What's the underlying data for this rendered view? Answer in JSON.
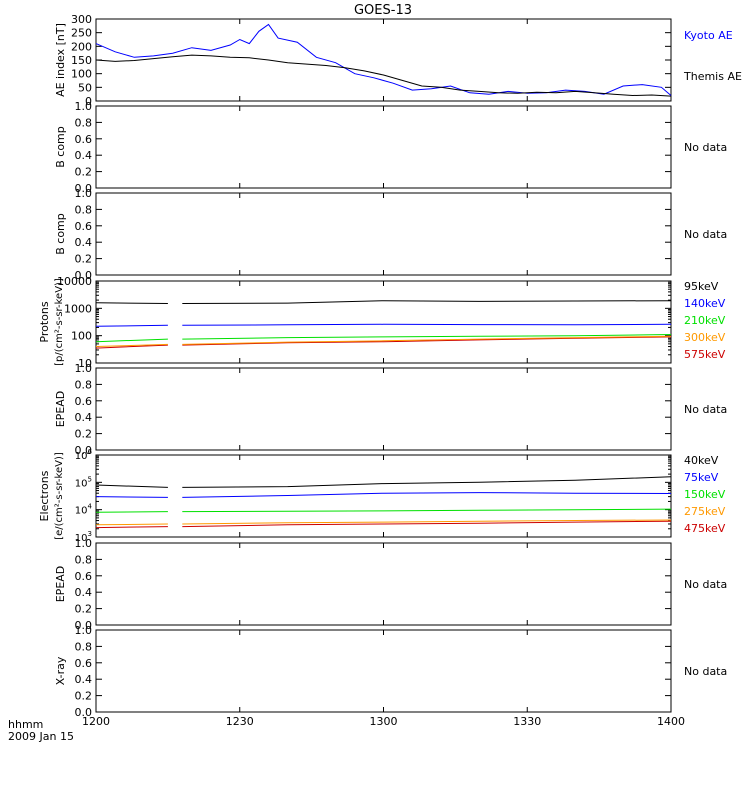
{
  "title": "GOES-13",
  "footer": {
    "unit_label": "hhmm",
    "date_label": "2009 Jan 15"
  },
  "x_axis": {
    "range": [
      720,
      840
    ],
    "ticks": [
      {
        "value": 720,
        "label": "1200"
      },
      {
        "value": 750,
        "label": "1230"
      },
      {
        "value": 780,
        "label": "1300"
      },
      {
        "value": 810,
        "label": "1330"
      },
      {
        "value": 840,
        "label": "1400"
      }
    ]
  },
  "colors": {
    "axis": "#000000",
    "black": "#000000",
    "blue": "#0000ff",
    "green": "#00e000",
    "orange": "#ff9900",
    "red": "#cc0000"
  },
  "chart_data": [
    {
      "type": "line",
      "ylabel": "AE index [nT]",
      "ylim": [
        0,
        300
      ],
      "y_ticks": [
        {
          "value": 0,
          "label": "0"
        },
        {
          "value": 50,
          "label": "50"
        },
        {
          "value": 100,
          "label": "100"
        },
        {
          "value": 150,
          "label": "150"
        },
        {
          "value": 200,
          "label": "200"
        },
        {
          "value": 250,
          "label": "250"
        },
        {
          "value": 300,
          "label": "300"
        }
      ],
      "series": [
        {
          "name": "Kyoto AE",
          "color": "#0000ff",
          "x": [
            720,
            724,
            728,
            732,
            736,
            740,
            744,
            748,
            750,
            752,
            754,
            756,
            758,
            762,
            766,
            770,
            774,
            778,
            782,
            786,
            790,
            794,
            798,
            802,
            806,
            810,
            814,
            818,
            822,
            826,
            830,
            834,
            838,
            840
          ],
          "y": [
            210,
            180,
            160,
            165,
            175,
            195,
            185,
            205,
            225,
            210,
            255,
            280,
            230,
            215,
            160,
            140,
            100,
            85,
            65,
            40,
            45,
            55,
            30,
            25,
            35,
            28,
            30,
            40,
            35,
            25,
            55,
            60,
            50,
            20
          ]
        },
        {
          "name": "Themis AE",
          "color": "#000000",
          "x": [
            720,
            724,
            728,
            732,
            736,
            740,
            744,
            748,
            752,
            756,
            760,
            764,
            768,
            772,
            776,
            780,
            784,
            788,
            792,
            796,
            800,
            804,
            808,
            812,
            816,
            820,
            824,
            828,
            832,
            836,
            840
          ],
          "y": [
            150,
            145,
            148,
            155,
            162,
            168,
            165,
            160,
            158,
            150,
            140,
            135,
            130,
            122,
            110,
            95,
            75,
            55,
            50,
            40,
            35,
            30,
            28,
            32,
            30,
            35,
            30,
            25,
            20,
            22,
            18
          ]
        }
      ]
    },
    {
      "type": "line",
      "ylabel": "B comp",
      "ylim": [
        0,
        1
      ],
      "series": [],
      "note": "No data",
      "y_ticks": [
        {
          "value": 0,
          "label": "0.0"
        },
        {
          "value": 0.2,
          "label": "0.2"
        },
        {
          "value": 0.4,
          "label": "0.4"
        },
        {
          "value": 0.6,
          "label": "0.6"
        },
        {
          "value": 0.8,
          "label": "0.8"
        },
        {
          "value": 1,
          "label": "1.0"
        }
      ]
    },
    {
      "type": "line",
      "ylabel": "B comp",
      "ylim": [
        0,
        1
      ],
      "series": [],
      "note": "No data",
      "y_ticks": [
        {
          "value": 0,
          "label": "0.0"
        },
        {
          "value": 0.2,
          "label": "0.2"
        },
        {
          "value": 0.4,
          "label": "0.4"
        },
        {
          "value": 0.6,
          "label": "0.6"
        },
        {
          "value": 0.8,
          "label": "0.8"
        },
        {
          "value": 1,
          "label": "1.0"
        }
      ]
    },
    {
      "type": "line",
      "ylabel": "Protons",
      "ylabel2": "[p/(cm²-s-sr-keV)]",
      "yscale": "log",
      "ylim": [
        10,
        10000
      ],
      "data_gap": [
        735,
        738
      ],
      "y_ticks": [
        {
          "value": 10,
          "label": "10"
        },
        {
          "value": 100,
          "label": "100"
        },
        {
          "value": 1000,
          "label": "1000"
        },
        {
          "value": 10000,
          "label": "10000"
        }
      ],
      "series": [
        {
          "name": "575keV",
          "color": "#cc0000",
          "x": [
            720,
            735,
            738,
            760,
            780,
            800,
            820,
            840
          ],
          "y": [
            35,
            45,
            45,
            55,
            60,
            70,
            80,
            90
          ]
        },
        {
          "name": "300keV",
          "color": "#ff9900",
          "x": [
            720,
            735,
            738,
            760,
            780,
            800,
            820,
            840
          ],
          "y": [
            40,
            48,
            48,
            58,
            65,
            75,
            85,
            95
          ]
        },
        {
          "name": "210keV",
          "color": "#00e000",
          "x": [
            720,
            735,
            738,
            760,
            780,
            800,
            820,
            840
          ],
          "y": [
            60,
            75,
            75,
            85,
            90,
            95,
            100,
            110
          ]
        },
        {
          "name": "140keV",
          "color": "#0000ff",
          "x": [
            720,
            735,
            738,
            760,
            780,
            800,
            820,
            840
          ],
          "y": [
            220,
            240,
            240,
            250,
            260,
            255,
            250,
            260
          ]
        },
        {
          "name": "95keV",
          "color": "#000000",
          "x": [
            720,
            735,
            738,
            760,
            780,
            800,
            820,
            840
          ],
          "y": [
            1600,
            1500,
            1500,
            1550,
            1900,
            1800,
            1850,
            1900
          ]
        }
      ]
    },
    {
      "type": "line",
      "ylabel": "EPEAD",
      "ylim": [
        0,
        1
      ],
      "series": [],
      "note": "No data",
      "y_ticks": [
        {
          "value": 0,
          "label": "0.0"
        },
        {
          "value": 0.2,
          "label": "0.2"
        },
        {
          "value": 0.4,
          "label": "0.4"
        },
        {
          "value": 0.6,
          "label": "0.6"
        },
        {
          "value": 0.8,
          "label": "0.8"
        },
        {
          "value": 1,
          "label": "1.0"
        }
      ]
    },
    {
      "type": "line",
      "ylabel": "Electrons",
      "ylabel2": "[e/(cm²-s-sr-keV)]",
      "yscale": "log",
      "ylim": [
        1000,
        1000000
      ],
      "data_gap": [
        735,
        738
      ],
      "y_ticks": [
        {
          "value": 1000,
          "label": "10",
          "exp": "3"
        },
        {
          "value": 10000,
          "label": "10",
          "exp": "4"
        },
        {
          "value": 100000,
          "label": "10",
          "exp": "5"
        },
        {
          "value": 1000000,
          "label": "10",
          "exp": "6"
        }
      ],
      "series": [
        {
          "name": "475keV",
          "color": "#cc0000",
          "x": [
            720,
            735,
            738,
            760,
            780,
            800,
            820,
            840
          ],
          "y": [
            2200,
            2400,
            2400,
            2800,
            3000,
            3200,
            3500,
            3800
          ]
        },
        {
          "name": "275keV",
          "color": "#ff9900",
          "x": [
            720,
            735,
            738,
            760,
            780,
            800,
            820,
            840
          ],
          "y": [
            2800,
            3000,
            3000,
            3300,
            3500,
            3800,
            4000,
            4200
          ]
        },
        {
          "name": "150keV",
          "color": "#00e000",
          "x": [
            720,
            735,
            738,
            760,
            780,
            800,
            820,
            840
          ],
          "y": [
            8000,
            8500,
            8500,
            8800,
            9000,
            9500,
            10000,
            10500
          ]
        },
        {
          "name": "75keV",
          "color": "#0000ff",
          "x": [
            720,
            735,
            738,
            760,
            780,
            800,
            820,
            840
          ],
          "y": [
            30000,
            28000,
            28000,
            33000,
            40000,
            42000,
            40000,
            39000
          ]
        },
        {
          "name": "40keV",
          "color": "#000000",
          "x": [
            720,
            735,
            738,
            760,
            780,
            800,
            820,
            840
          ],
          "y": [
            80000,
            65000,
            65000,
            70000,
            90000,
            100000,
            120000,
            160000
          ]
        }
      ]
    },
    {
      "type": "line",
      "ylabel": "EPEAD",
      "ylim": [
        0,
        1
      ],
      "series": [],
      "note": "No data",
      "y_ticks": [
        {
          "value": 0,
          "label": "0.0"
        },
        {
          "value": 0.2,
          "label": "0.2"
        },
        {
          "value": 0.4,
          "label": "0.4"
        },
        {
          "value": 0.6,
          "label": "0.6"
        },
        {
          "value": 0.8,
          "label": "0.8"
        },
        {
          "value": 1,
          "label": "1.0"
        }
      ]
    },
    {
      "type": "line",
      "ylabel": "X-ray",
      "ylim": [
        0,
        1
      ],
      "series": [],
      "note": "No data",
      "y_ticks": [
        {
          "value": 0,
          "label": "0.0"
        },
        {
          "value": 0.2,
          "label": "0.2"
        },
        {
          "value": 0.4,
          "label": "0.4"
        },
        {
          "value": 0.6,
          "label": "0.6"
        },
        {
          "value": 0.8,
          "label": "0.8"
        },
        {
          "value": 1,
          "label": "1.0"
        }
      ]
    }
  ]
}
